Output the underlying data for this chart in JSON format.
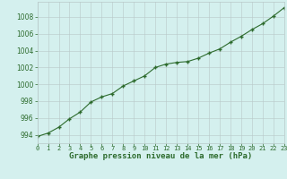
{
  "hours": [
    0,
    1,
    2,
    3,
    4,
    5,
    6,
    7,
    8,
    9,
    10,
    11,
    12,
    13,
    14,
    15,
    16,
    17,
    18,
    19,
    20,
    21,
    22,
    23
  ],
  "pressure": [
    993.8,
    994.2,
    994.9,
    995.9,
    996.7,
    997.9,
    998.5,
    998.9,
    999.8,
    1000.4,
    1001.0,
    1002.0,
    1002.4,
    1002.6,
    1002.7,
    1003.1,
    1003.7,
    1004.2,
    1005.0,
    1005.7,
    1006.5,
    1007.2,
    1008.1,
    1009.1
  ],
  "line_color": "#2d6b2d",
  "marker_color": "#2d6b2d",
  "bg_color": "#d4f0ee",
  "grid_color": "#b8c8c8",
  "xlabel": "Graphe pression niveau de la mer (hPa)",
  "xlabel_color": "#2d6b2d",
  "tick_color": "#2d6b2d",
  "ylim": [
    993.0,
    1009.8
  ],
  "yticks": [
    994,
    996,
    998,
    1000,
    1002,
    1004,
    1006,
    1008
  ],
  "xlim": [
    0,
    23
  ],
  "xticks": [
    0,
    1,
    2,
    3,
    4,
    5,
    6,
    7,
    8,
    9,
    10,
    11,
    12,
    13,
    14,
    15,
    16,
    17,
    18,
    19,
    20,
    21,
    22,
    23
  ]
}
